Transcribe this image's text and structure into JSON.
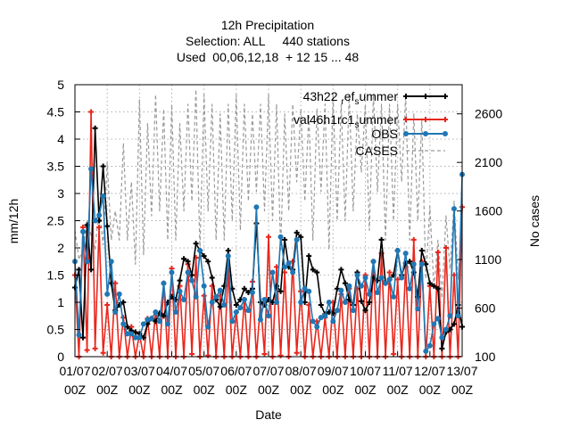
{
  "chart_data": {
    "type": "line",
    "title_lines": [
      "12h Precipitation",
      "Selection: ALL     440 stations",
      "Used  00,06,12,18  + 12 15 ... 48"
    ],
    "xlabel": "Date",
    "ylabel": "mm/12h",
    "y2label": "No cases",
    "ylim": [
      0,
      5
    ],
    "y2lim": [
      100,
      2900
    ],
    "xlim": [
      0,
      24
    ],
    "yticks": [
      "0",
      "0.5",
      "1",
      "1.5",
      "2",
      "2.5",
      "3",
      "3.5",
      "4",
      "4.5",
      "5"
    ],
    "y2ticks": [
      "100",
      "600",
      "1100",
      "1600",
      "2100",
      "2600"
    ],
    "y2tick_values": [
      100,
      600,
      1100,
      1600,
      2100,
      2600
    ],
    "xticks": [
      {
        "top": "01/07",
        "bottom": "00Z"
      },
      {
        "top": "02/07",
        "bottom": "00Z"
      },
      {
        "top": "03/07",
        "bottom": "00Z"
      },
      {
        "top": "04/07",
        "bottom": "00Z"
      },
      {
        "top": "05/07",
        "bottom": "00Z"
      },
      {
        "top": "06/07",
        "bottom": "00Z"
      },
      {
        "top": "07/07",
        "bottom": "00Z"
      },
      {
        "top": "08/07",
        "bottom": "00Z"
      },
      {
        "top": "09/07",
        "bottom": "00Z"
      },
      {
        "top": "10/07",
        "bottom": "00Z"
      },
      {
        "top": "11/07",
        "bottom": "00Z"
      },
      {
        "top": "12/07",
        "bottom": "00Z"
      },
      {
        "top": "13/07",
        "bottom": "00Z"
      }
    ],
    "grid": true,
    "legend_position": "top-right",
    "series": [
      {
        "name": "43h22 ref summer",
        "legend_parts": [
          "43h22 ",
          "r",
          "ef",
          "s",
          "ummer"
        ],
        "color": "#000000",
        "marker": "plus",
        "axis": "y1",
        "x": [
          0.0,
          0.25,
          0.5,
          0.75,
          1.0,
          1.25,
          1.5,
          1.75,
          2.0,
          2.25,
          2.5,
          2.75,
          3.0,
          3.25,
          3.5,
          3.75,
          4.0,
          4.25,
          4.5,
          4.75,
          5.0,
          5.25,
          5.5,
          5.75,
          6.0,
          6.25,
          6.5,
          6.75,
          7.0,
          7.25,
          7.5,
          7.75,
          8.0,
          8.25,
          8.5,
          8.75,
          9.0,
          9.25,
          9.5,
          9.75,
          10.0,
          10.25,
          10.5,
          10.75,
          11.0,
          11.25,
          11.5,
          11.75,
          12.0,
          12.25,
          12.5,
          12.75,
          13.0,
          13.25,
          13.5,
          13.75,
          14.0,
          14.25,
          14.5,
          14.75,
          15.0,
          15.25,
          15.5,
          15.75,
          16.0,
          16.25,
          16.5,
          16.75,
          17.0,
          17.25,
          17.5,
          17.75,
          18.0,
          18.25,
          18.5,
          18.75,
          19.0,
          19.25,
          19.5,
          19.75,
          20.0,
          20.25,
          20.5,
          20.75,
          21.0,
          21.25,
          21.5,
          21.75,
          22.0,
          22.25,
          22.5,
          22.75,
          23.0,
          23.25,
          23.5,
          23.75,
          24.0
        ],
        "y": [
          1.27,
          1.6,
          0.35,
          2.42,
          1.6,
          4.2,
          2.5,
          3.5,
          2.4,
          1.35,
          0.85,
          0.95,
          1.0,
          0.55,
          0.48,
          0.45,
          0.42,
          0.35,
          0.6,
          0.7,
          0.65,
          0.8,
          0.75,
          1.0,
          1.1,
          1.05,
          1.4,
          1.8,
          1.75,
          1.5,
          2.08,
          1.95,
          1.85,
          1.75,
          1.45,
          1.05,
          0.92,
          1.3,
          1.95,
          1.25,
          0.95,
          1.05,
          1.25,
          1.18,
          1.25,
          2.45,
          1.0,
          0.95,
          1.05,
          1.0,
          1.3,
          1.2,
          2.15,
          1.65,
          1.6,
          2.28,
          2.2,
          1.0,
          1.85,
          1.6,
          1.55,
          0.95,
          0.78,
          0.82,
          0.8,
          1.25,
          1.6,
          1.35,
          1.05,
          0.95,
          1.55,
          1.02,
          0.85,
          1.0,
          1.45,
          1.4,
          2.15,
          1.35,
          1.42,
          1.5,
          1.95,
          1.5,
          1.72,
          1.75,
          1.55,
          1.1,
          1.95,
          1.7,
          1.35,
          1.3,
          1.25,
          0.15,
          0.45,
          0.5,
          0.6,
          0.95,
          0.55
        ]
      },
      {
        "name": "val46h1rc1 summer",
        "legend_parts": [
          "val46h1rc1",
          "",
          "",
          "s",
          "ummer"
        ],
        "color": "#e8261c",
        "marker": "plus",
        "axis": "y1",
        "x": [
          0.0,
          0.25,
          0.5,
          0.75,
          1.0,
          1.25,
          1.5,
          1.75,
          2.0,
          2.25,
          2.5,
          2.75,
          3.0,
          3.25,
          3.5,
          3.75,
          4.0,
          4.25,
          4.5,
          4.75,
          5.0,
          5.25,
          5.5,
          5.75,
          6.0,
          6.25,
          6.5,
          6.75,
          7.0,
          7.25,
          7.5,
          7.75,
          8.0,
          8.25,
          8.5,
          8.75,
          9.0,
          9.25,
          9.5,
          9.75,
          10.0,
          10.25,
          10.5,
          10.75,
          11.0,
          11.25,
          11.5,
          11.75,
          12.0,
          12.25,
          12.5,
          12.75,
          13.0,
          13.25,
          13.5,
          13.75,
          14.0,
          14.25,
          14.5,
          14.75,
          15.0,
          15.25,
          15.5,
          15.75,
          16.0,
          16.25,
          16.5,
          16.75,
          17.0,
          17.25,
          17.5,
          17.75,
          18.0,
          18.25,
          18.5,
          18.75,
          19.0,
          19.25,
          19.5,
          19.75,
          20.0,
          20.25,
          20.5,
          20.75,
          21.0,
          21.25,
          21.5,
          21.75,
          22.0,
          22.25,
          22.5,
          22.75,
          23.0,
          23.25,
          23.5,
          23.75,
          24.0
        ],
        "y": [
          1.5,
          0.0,
          2.38,
          0.12,
          4.5,
          0.15,
          2.38,
          0.07,
          0.95,
          0.0,
          1.35,
          0.0,
          0.72,
          0.0,
          0.55,
          0.0,
          0.42,
          0.0,
          0.7,
          0.0,
          0.82,
          0.0,
          1.35,
          0.0,
          1.62,
          0.0,
          1.3,
          0.0,
          1.7,
          0.05,
          1.82,
          0.0,
          1.12,
          0.02,
          1.3,
          0.0,
          1.12,
          0.0,
          1.62,
          0.0,
          0.82,
          0.0,
          1.05,
          0.0,
          1.38,
          0.0,
          1.0,
          0.05,
          2.2,
          0.0,
          1.65,
          0.02,
          1.55,
          0.0,
          1.75,
          0.07,
          1.2,
          0.0,
          0.95,
          0.0,
          0.65,
          0.0,
          0.72,
          0.0,
          1.0,
          0.0,
          1.15,
          0.0,
          1.25,
          0.0,
          1.25,
          0.0,
          1.5,
          0.0,
          1.75,
          0.0,
          1.9,
          0.0,
          1.55,
          0.05,
          1.42,
          0.0,
          1.65,
          0.0,
          2.15,
          0.0,
          1.75,
          0.0,
          1.3,
          0.0,
          1.92,
          0.0,
          2.0,
          0.0,
          1.5,
          0.0,
          2.75
        ]
      },
      {
        "name": "OBS",
        "legend_parts": [
          "OBS",
          "",
          "",
          "",
          ""
        ],
        "color": "#1f77b4",
        "marker": "star",
        "axis": "y1",
        "x": [
          0.0,
          0.25,
          0.5,
          0.75,
          1.0,
          1.25,
          1.5,
          1.75,
          2.0,
          2.25,
          2.5,
          2.75,
          3.0,
          3.25,
          3.5,
          3.75,
          4.0,
          4.25,
          4.5,
          4.75,
          5.0,
          5.25,
          5.5,
          5.75,
          6.0,
          6.25,
          6.5,
          6.75,
          7.0,
          7.25,
          7.5,
          7.75,
          8.0,
          8.25,
          8.5,
          8.75,
          9.0,
          9.25,
          9.5,
          9.75,
          10.0,
          10.25,
          10.5,
          10.75,
          11.0,
          11.25,
          11.5,
          11.75,
          12.0,
          12.25,
          12.5,
          12.75,
          13.0,
          13.25,
          13.5,
          13.75,
          14.0,
          14.25,
          14.5,
          14.75,
          15.0,
          15.25,
          15.5,
          15.75,
          16.0,
          16.25,
          16.5,
          16.75,
          17.0,
          17.25,
          17.5,
          17.75,
          18.0,
          18.25,
          18.5,
          18.75,
          19.0,
          19.25,
          19.5,
          19.75,
          20.0,
          20.25,
          20.5,
          20.75,
          21.0,
          21.25,
          21.5,
          21.75,
          22.0,
          22.25,
          22.5,
          22.75,
          23.0,
          23.25,
          23.5,
          23.75,
          24.0
        ],
        "y": [
          1.75,
          0.4,
          2.3,
          1.75,
          3.45,
          2.5,
          2.6,
          2.95,
          1.15,
          1.75,
          0.82,
          1.15,
          0.6,
          0.42,
          0.42,
          0.35,
          0.35,
          0.6,
          0.68,
          0.7,
          0.82,
          0.65,
          1.35,
          0.6,
          1.55,
          0.82,
          1.2,
          1.05,
          1.55,
          1.4,
          1.1,
          1.95,
          1.3,
          0.55,
          1.0,
          1.1,
          1.22,
          0.95,
          1.85,
          0.65,
          0.82,
          0.9,
          1.05,
          0.85,
          1.18,
          2.75,
          0.68,
          1.05,
          0.75,
          1.55,
          1.0,
          2.2,
          1.65,
          1.72,
          1.55,
          2.15,
          1.0,
          1.25,
          1.2,
          0.65,
          0.55,
          0.72,
          0.75,
          1.0,
          0.65,
          0.85,
          1.22,
          1.0,
          1.3,
          0.85,
          1.5,
          1.3,
          1.45,
          1.15,
          1.75,
          1.18,
          1.45,
          1.35,
          1.42,
          1.1,
          1.95,
          1.45,
          1.9,
          1.25,
          1.7,
          0.88,
          1.7,
          0.1,
          0.2,
          0.6,
          0.7,
          0.35,
          0.5,
          0.75,
          2.72,
          0.75,
          3.35
        ]
      },
      {
        "name": "CASES",
        "legend_parts": [
          "CASES",
          "",
          "",
          "",
          ""
        ],
        "color": "#9a9a9a",
        "marker": "none",
        "dashed": true,
        "axis": "y2",
        "x": [
          0.0,
          0.25,
          0.5,
          0.75,
          1.0,
          1.25,
          1.5,
          1.75,
          2.0,
          2.25,
          2.5,
          2.75,
          3.0,
          3.25,
          3.5,
          3.75,
          4.0,
          4.25,
          4.5,
          4.75,
          5.0,
          5.25,
          5.5,
          5.75,
          6.0,
          6.25,
          6.5,
          6.75,
          7.0,
          7.25,
          7.5,
          7.75,
          8.0,
          8.25,
          8.5,
          8.75,
          9.0,
          9.25,
          9.5,
          9.75,
          10.0,
          10.25,
          10.5,
          10.75,
          11.0,
          11.25,
          11.5,
          11.75,
          12.0,
          12.25,
          12.5,
          12.75,
          13.0,
          13.25,
          13.5,
          13.75,
          14.0,
          14.25,
          14.5,
          14.75,
          15.0,
          15.25,
          15.5,
          15.75,
          16.0,
          16.25,
          16.5,
          16.75,
          17.0,
          17.25,
          17.5,
          17.75,
          18.0,
          18.25,
          18.5,
          18.75,
          19.0,
          19.25,
          19.5,
          19.75,
          20.0,
          20.25,
          20.5,
          20.75,
          21.0,
          21.25,
          21.5,
          21.75,
          22.0,
          22.25,
          22.5,
          22.75,
          23.0,
          23.25,
          23.5,
          23.75,
          24.0
        ],
        "y": [
          1400,
          1100,
          1200,
          1500,
          1350,
          1200,
          1650,
          1250,
          2100,
          1300,
          1600,
          1300,
          2300,
          1300,
          1900,
          1050,
          2750,
          1150,
          2500,
          1550,
          2800,
          1600,
          2650,
          1300,
          2700,
          1300,
          2500,
          1600,
          2700,
          1700,
          2850,
          1200,
          2800,
          1600,
          2700,
          1300,
          2600,
          1300,
          2700,
          1500,
          2800,
          1400,
          2700,
          1700,
          2600,
          1800,
          2700,
          1600,
          2800,
          1500,
          2700,
          1200,
          2600,
          1600,
          2700,
          1900,
          2650,
          1700,
          2600,
          1300,
          2650,
          1800,
          2700,
          1200,
          2800,
          1500,
          2700,
          1500,
          2800,
          1600,
          2600,
          2000,
          2700,
          1400,
          2800,
          1800,
          2700,
          1300,
          2700,
          1500,
          2700,
          1900,
          2800,
          1300,
          2600,
          1500,
          2550,
          900,
          1650,
          800,
          1300,
          700,
          1550,
          1000,
          1700,
          900,
          1550
        ]
      }
    ]
  }
}
